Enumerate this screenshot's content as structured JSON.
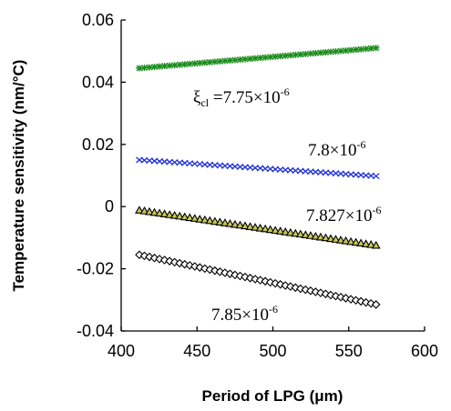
{
  "chart_data": {
    "type": "scatter",
    "title": "",
    "xlabel": "Period of LPG (μm)",
    "ylabel": "Temperature sensitivity (nm/°C)",
    "xlim": [
      400,
      600
    ],
    "ylim": [
      -0.04,
      0.06
    ],
    "x_ticks": [
      "400",
      "450",
      "500",
      "550",
      "600"
    ],
    "y_ticks": [
      "0.06",
      "0.04",
      "0.02",
      "0",
      "-0.02",
      "-0.04"
    ],
    "series": [
      {
        "marker": "asterisk",
        "color": "#1a8c1a",
        "x_range": [
          412,
          568
        ],
        "y_range": [
          0.0445,
          0.051
        ],
        "annotation": {
          "prefix": "ξ",
          "subscript": "cl",
          "text": " =7.75×10",
          "superscript": "-6"
        }
      },
      {
        "marker": "x",
        "color": "#1f2fd6",
        "x_range": [
          412,
          568
        ],
        "y_range": [
          0.015,
          0.0098
        ],
        "annotation": {
          "text": "7.8×10",
          "superscript": "-6"
        }
      },
      {
        "marker": "triangle",
        "color": "#000000",
        "fill": "#c8c85a",
        "x_range": [
          412,
          568
        ],
        "y_range": [
          -0.0012,
          -0.0125
        ],
        "annotation": {
          "text": "7.827×10",
          "superscript": "-6"
        }
      },
      {
        "marker": "diamond",
        "color": "#000000",
        "fill": "#ffffff",
        "x_range": [
          412,
          568
        ],
        "y_range": [
          -0.0155,
          -0.0315
        ],
        "annotation": {
          "text": "7.85×10",
          "superscript": "-6"
        }
      }
    ]
  }
}
